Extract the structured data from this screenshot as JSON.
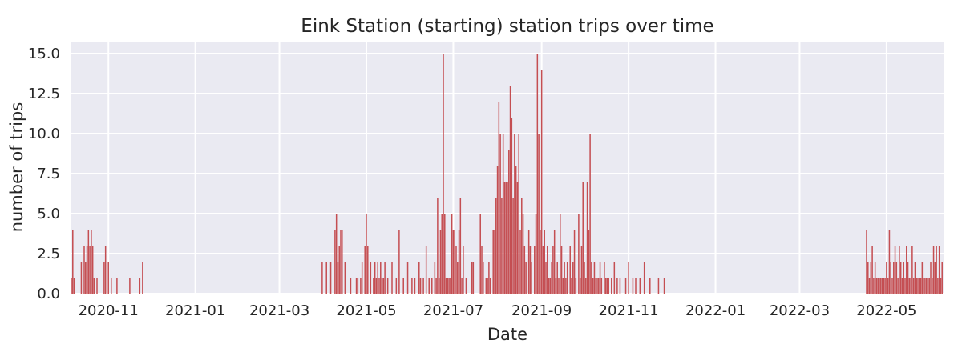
{
  "chart_data": {
    "type": "bar",
    "title": "Eink Station (starting) station trips over time",
    "xlabel": "Date",
    "ylabel": "number of trips",
    "xlim": [
      "2020-10-06",
      "2022-06-10"
    ],
    "ylim": [
      0,
      15.75
    ],
    "grid": true,
    "legend": "none",
    "bar_color": "#c44e52",
    "background_color": "#eaeaf2",
    "grid_color": "#ffffff",
    "x_ticks": [
      "2020-11-01",
      "2021-01-01",
      "2021-03-01",
      "2021-05-01",
      "2021-07-01",
      "2021-09-01",
      "2021-11-01",
      "2022-01-01",
      "2022-03-01",
      "2022-05-01"
    ],
    "x_tick_labels": [
      "2020-11",
      "2021-01",
      "2021-03",
      "2021-05",
      "2021-07",
      "2021-09",
      "2021-11",
      "2022-01",
      "2022-03",
      "2022-05"
    ],
    "y_ticks": [
      0,
      2.5,
      5,
      7.5,
      10,
      12.5,
      15
    ],
    "y_tick_labels": [
      "0.0",
      "2.5",
      "5.0",
      "7.5",
      "10.0",
      "12.5",
      "15.0"
    ],
    "series": [
      {
        "points": [
          [
            "2020-10-06",
            1
          ],
          [
            "2020-10-07",
            4
          ],
          [
            "2020-10-08",
            1
          ],
          [
            "2020-10-13",
            2
          ],
          [
            "2020-10-15",
            3
          ],
          [
            "2020-10-16",
            2
          ],
          [
            "2020-10-17",
            3
          ],
          [
            "2020-10-18",
            4
          ],
          [
            "2020-10-19",
            3
          ],
          [
            "2020-10-20",
            4
          ],
          [
            "2020-10-21",
            3
          ],
          [
            "2020-10-22",
            1
          ],
          [
            "2020-10-24",
            1
          ],
          [
            "2020-10-29",
            2
          ],
          [
            "2020-10-30",
            3
          ],
          [
            "2020-11-01",
            2
          ],
          [
            "2020-11-03",
            1
          ],
          [
            "2020-11-07",
            1
          ],
          [
            "2020-11-16",
            1
          ],
          [
            "2020-11-23",
            1
          ],
          [
            "2020-11-25",
            2
          ],
          [
            "2021-03-31",
            2
          ],
          [
            "2021-04-03",
            2
          ],
          [
            "2021-04-06",
            2
          ],
          [
            "2021-04-09",
            4
          ],
          [
            "2021-04-10",
            5
          ],
          [
            "2021-04-11",
            2
          ],
          [
            "2021-04-12",
            3
          ],
          [
            "2021-04-13",
            4
          ],
          [
            "2021-04-14",
            4
          ],
          [
            "2021-04-16",
            2
          ],
          [
            "2021-04-20",
            1
          ],
          [
            "2021-04-24",
            1
          ],
          [
            "2021-04-25",
            1
          ],
          [
            "2021-04-27",
            1
          ],
          [
            "2021-04-28",
            2
          ],
          [
            "2021-04-30",
            3
          ],
          [
            "2021-05-01",
            5
          ],
          [
            "2021-05-02",
            3
          ],
          [
            "2021-05-04",
            2
          ],
          [
            "2021-05-06",
            1
          ],
          [
            "2021-05-07",
            2
          ],
          [
            "2021-05-08",
            1
          ],
          [
            "2021-05-09",
            2
          ],
          [
            "2021-05-10",
            1
          ],
          [
            "2021-05-11",
            2
          ],
          [
            "2021-05-12",
            1
          ],
          [
            "2021-05-13",
            1
          ],
          [
            "2021-05-14",
            2
          ],
          [
            "2021-05-16",
            1
          ],
          [
            "2021-05-19",
            2
          ],
          [
            "2021-05-22",
            1
          ],
          [
            "2021-05-24",
            4
          ],
          [
            "2021-05-27",
            1
          ],
          [
            "2021-05-30",
            2
          ],
          [
            "2021-06-02",
            1
          ],
          [
            "2021-06-04",
            1
          ],
          [
            "2021-06-07",
            2
          ],
          [
            "2021-06-08",
            1
          ],
          [
            "2021-06-10",
            1
          ],
          [
            "2021-06-12",
            3
          ],
          [
            "2021-06-14",
            1
          ],
          [
            "2021-06-16",
            1
          ],
          [
            "2021-06-18",
            2
          ],
          [
            "2021-06-19",
            1
          ],
          [
            "2021-06-20",
            6
          ],
          [
            "2021-06-21",
            1
          ],
          [
            "2021-06-22",
            4
          ],
          [
            "2021-06-23",
            5
          ],
          [
            "2021-06-24",
            15
          ],
          [
            "2021-06-25",
            5
          ],
          [
            "2021-06-26",
            1
          ],
          [
            "2021-06-27",
            1
          ],
          [
            "2021-06-28",
            1
          ],
          [
            "2021-06-29",
            1
          ],
          [
            "2021-06-30",
            5
          ],
          [
            "2021-07-01",
            4
          ],
          [
            "2021-07-02",
            4
          ],
          [
            "2021-07-03",
            3
          ],
          [
            "2021-07-04",
            2
          ],
          [
            "2021-07-05",
            4
          ],
          [
            "2021-07-06",
            6
          ],
          [
            "2021-07-07",
            1
          ],
          [
            "2021-07-08",
            3
          ],
          [
            "2021-07-10",
            1
          ],
          [
            "2021-07-14",
            2
          ],
          [
            "2021-07-15",
            2
          ],
          [
            "2021-07-20",
            5
          ],
          [
            "2021-07-21",
            3
          ],
          [
            "2021-07-22",
            2
          ],
          [
            "2021-07-24",
            1
          ],
          [
            "2021-07-25",
            1
          ],
          [
            "2021-07-26",
            2
          ],
          [
            "2021-07-27",
            1
          ],
          [
            "2021-07-29",
            4
          ],
          [
            "2021-07-30",
            4
          ],
          [
            "2021-07-31",
            6
          ],
          [
            "2021-08-01",
            8
          ],
          [
            "2021-08-02",
            12
          ],
          [
            "2021-08-03",
            10
          ],
          [
            "2021-08-04",
            6
          ],
          [
            "2021-08-05",
            10
          ],
          [
            "2021-08-06",
            7
          ],
          [
            "2021-08-07",
            7
          ],
          [
            "2021-08-08",
            7
          ],
          [
            "2021-08-09",
            9
          ],
          [
            "2021-08-10",
            13
          ],
          [
            "2021-08-11",
            11
          ],
          [
            "2021-08-12",
            6
          ],
          [
            "2021-08-13",
            10
          ],
          [
            "2021-08-14",
            8
          ],
          [
            "2021-08-15",
            7
          ],
          [
            "2021-08-16",
            10
          ],
          [
            "2021-08-17",
            4
          ],
          [
            "2021-08-18",
            6
          ],
          [
            "2021-08-19",
            5
          ],
          [
            "2021-08-20",
            3
          ],
          [
            "2021-08-21",
            2
          ],
          [
            "2021-08-23",
            4
          ],
          [
            "2021-08-24",
            3
          ],
          [
            "2021-08-25",
            2
          ],
          [
            "2021-08-27",
            3
          ],
          [
            "2021-08-28",
            5
          ],
          [
            "2021-08-29",
            15
          ],
          [
            "2021-08-30",
            10
          ],
          [
            "2021-08-31",
            4
          ],
          [
            "2021-09-01",
            14
          ],
          [
            "2021-09-02",
            3
          ],
          [
            "2021-09-03",
            4
          ],
          [
            "2021-09-04",
            2
          ],
          [
            "2021-09-05",
            3
          ],
          [
            "2021-09-06",
            1
          ],
          [
            "2021-09-07",
            1
          ],
          [
            "2021-09-08",
            2
          ],
          [
            "2021-09-09",
            3
          ],
          [
            "2021-09-10",
            4
          ],
          [
            "2021-09-11",
            1
          ],
          [
            "2021-09-12",
            2
          ],
          [
            "2021-09-13",
            1
          ],
          [
            "2021-09-14",
            5
          ],
          [
            "2021-09-15",
            3
          ],
          [
            "2021-09-16",
            1
          ],
          [
            "2021-09-17",
            2
          ],
          [
            "2021-09-18",
            1
          ],
          [
            "2021-09-19",
            2
          ],
          [
            "2021-09-21",
            3
          ],
          [
            "2021-09-22",
            1
          ],
          [
            "2021-09-23",
            2
          ],
          [
            "2021-09-24",
            4
          ],
          [
            "2021-09-25",
            1
          ],
          [
            "2021-09-27",
            5
          ],
          [
            "2021-09-28",
            1
          ],
          [
            "2021-09-29",
            3
          ],
          [
            "2021-09-30",
            7
          ],
          [
            "2021-10-01",
            2
          ],
          [
            "2021-10-02",
            1
          ],
          [
            "2021-10-03",
            7
          ],
          [
            "2021-10-04",
            4
          ],
          [
            "2021-10-05",
            10
          ],
          [
            "2021-10-06",
            2
          ],
          [
            "2021-10-07",
            1
          ],
          [
            "2021-10-08",
            2
          ],
          [
            "2021-10-09",
            1
          ],
          [
            "2021-10-10",
            1
          ],
          [
            "2021-10-11",
            1
          ],
          [
            "2021-10-12",
            2
          ],
          [
            "2021-10-13",
            1
          ],
          [
            "2021-10-15",
            2
          ],
          [
            "2021-10-16",
            1
          ],
          [
            "2021-10-17",
            1
          ],
          [
            "2021-10-18",
            1
          ],
          [
            "2021-10-20",
            1
          ],
          [
            "2021-10-22",
            2
          ],
          [
            "2021-10-24",
            1
          ],
          [
            "2021-10-26",
            1
          ],
          [
            "2021-10-30",
            1
          ],
          [
            "2021-11-01",
            2
          ],
          [
            "2021-11-04",
            1
          ],
          [
            "2021-11-06",
            1
          ],
          [
            "2021-11-09",
            1
          ],
          [
            "2021-11-12",
            2
          ],
          [
            "2021-11-16",
            1
          ],
          [
            "2021-11-22",
            1
          ],
          [
            "2021-11-26",
            1
          ],
          [
            "2022-04-17",
            4
          ],
          [
            "2022-04-18",
            2
          ],
          [
            "2022-04-19",
            1
          ],
          [
            "2022-04-20",
            2
          ],
          [
            "2022-04-21",
            3
          ],
          [
            "2022-04-22",
            1
          ],
          [
            "2022-04-23",
            2
          ],
          [
            "2022-04-24",
            1
          ],
          [
            "2022-04-25",
            1
          ],
          [
            "2022-04-26",
            1
          ],
          [
            "2022-04-27",
            1
          ],
          [
            "2022-04-28",
            1
          ],
          [
            "2022-04-29",
            1
          ],
          [
            "2022-04-30",
            1
          ],
          [
            "2022-05-01",
            2
          ],
          [
            "2022-05-02",
            1
          ],
          [
            "2022-05-03",
            4
          ],
          [
            "2022-05-04",
            2
          ],
          [
            "2022-05-05",
            1
          ],
          [
            "2022-05-06",
            2
          ],
          [
            "2022-05-07",
            3
          ],
          [
            "2022-05-08",
            2
          ],
          [
            "2022-05-09",
            1
          ],
          [
            "2022-05-10",
            3
          ],
          [
            "2022-05-11",
            2
          ],
          [
            "2022-05-12",
            1
          ],
          [
            "2022-05-13",
            2
          ],
          [
            "2022-05-14",
            1
          ],
          [
            "2022-05-15",
            3
          ],
          [
            "2022-05-16",
            2
          ],
          [
            "2022-05-17",
            1
          ],
          [
            "2022-05-18",
            1
          ],
          [
            "2022-05-19",
            3
          ],
          [
            "2022-05-20",
            1
          ],
          [
            "2022-05-21",
            2
          ],
          [
            "2022-05-22",
            1
          ],
          [
            "2022-05-23",
            1
          ],
          [
            "2022-05-24",
            1
          ],
          [
            "2022-05-25",
            1
          ],
          [
            "2022-05-26",
            2
          ],
          [
            "2022-05-27",
            1
          ],
          [
            "2022-05-28",
            1
          ],
          [
            "2022-05-29",
            1
          ],
          [
            "2022-05-30",
            1
          ],
          [
            "2022-05-31",
            1
          ],
          [
            "2022-06-01",
            2
          ],
          [
            "2022-06-02",
            1
          ],
          [
            "2022-06-03",
            3
          ],
          [
            "2022-06-04",
            2
          ],
          [
            "2022-06-05",
            3
          ],
          [
            "2022-06-06",
            1
          ],
          [
            "2022-06-07",
            3
          ],
          [
            "2022-06-08",
            1
          ],
          [
            "2022-06-09",
            2
          ]
        ]
      }
    ]
  }
}
